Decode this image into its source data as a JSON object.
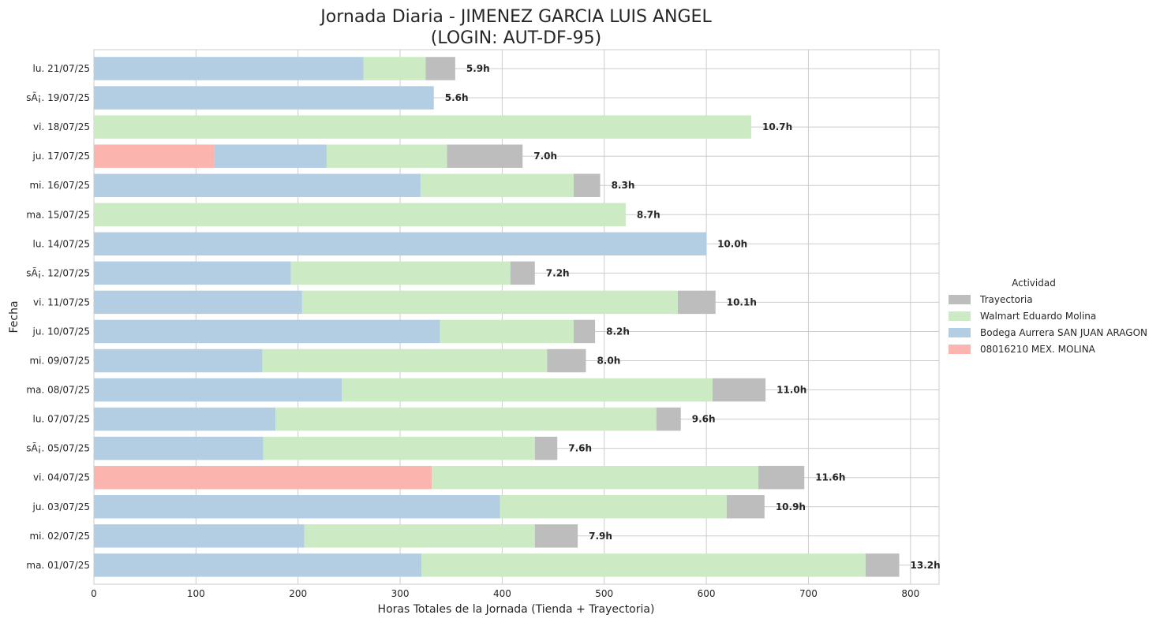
{
  "chart_data": {
    "type": "bar",
    "orientation": "horizontal",
    "stacked": true,
    "title_line1": "Jornada Diaria - JIMENEZ GARCIA LUIS ANGEL",
    "title_line2": "(LOGIN: AUT-DF-95)",
    "xlabel": "Horas Totales de la Jornada (Tienda + Trayectoria)",
    "ylabel": "Fecha",
    "xlim": [
      0,
      828
    ],
    "xticks": [
      0,
      100,
      200,
      300,
      400,
      500,
      600,
      700,
      800
    ],
    "grid": true,
    "legend_placement": "center-right",
    "legend_title": "Actividad",
    "categories": [
      "lu. 21/07/25",
      "sÃ¡. 19/07/25",
      "vi. 18/07/25",
      "ju. 17/07/25",
      "mi. 16/07/25",
      "ma. 15/07/25",
      "lu. 14/07/25",
      "sÃ¡. 12/07/25",
      "vi. 11/07/25",
      "ju. 10/07/25",
      "mi. 09/07/25",
      "ma. 08/07/25",
      "lu. 07/07/25",
      "sÃ¡. 05/07/25",
      "vi. 04/07/25",
      "ju. 03/07/25",
      "mi. 02/07/25",
      "ma. 01/07/25"
    ],
    "series": [
      {
        "name": "08016210 MEX. MOLINA",
        "color": "#fbb4ae",
        "values": [
          0,
          0,
          0,
          118,
          0,
          0,
          0,
          0,
          0,
          0,
          0,
          0,
          0,
          0,
          331,
          0,
          0,
          0
        ]
      },
      {
        "name": "Bodega Aurrera SAN JUAN ARAGON",
        "color": "#b3cde3",
        "values": [
          264,
          333,
          0,
          110,
          320,
          0,
          600,
          193,
          204,
          339,
          165,
          243,
          178,
          166,
          0,
          398,
          206,
          321
        ]
      },
      {
        "name": "Walmart Eduardo Molina",
        "color": "#ccebc5",
        "values": [
          61,
          0,
          644,
          118,
          150,
          521,
          0,
          215,
          368,
          131,
          279,
          363,
          373,
          266,
          320,
          222,
          226,
          435
        ]
      },
      {
        "name": "Trayectoria",
        "color": "#bdbdbd",
        "values": [
          29,
          0,
          0,
          74,
          26,
          0,
          0,
          24,
          37,
          21,
          38,
          52,
          24,
          22,
          45,
          37,
          42,
          33
        ]
      }
    ],
    "legend_order": [
      "Trayectoria",
      "Walmart Eduardo Molina",
      "Bodega Aurrera SAN JUAN ARAGON",
      "08016210 MEX. MOLINA"
    ],
    "totals_labels": [
      "5.9h",
      "5.6h",
      "10.7h",
      "7.0h",
      "8.3h",
      "8.7h",
      "10.0h",
      "7.2h",
      "10.1h",
      "8.2h",
      "8.0h",
      "11.0h",
      "9.6h",
      "7.6h",
      "11.6h",
      "10.9h",
      "7.9h",
      "13.2h"
    ]
  }
}
